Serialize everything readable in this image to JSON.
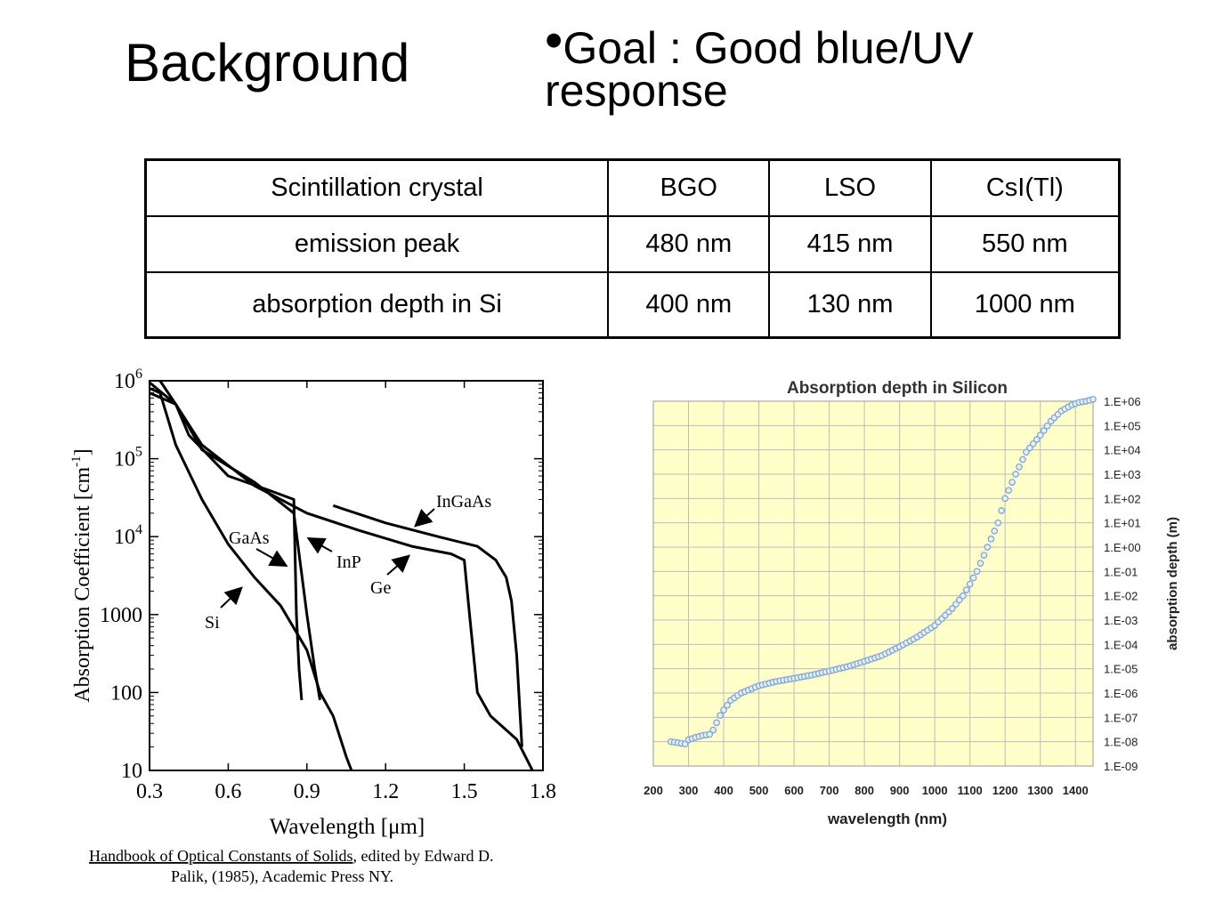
{
  "slide": {
    "title": "Background",
    "goal_line1": "Goal : Good blue/UV",
    "goal_line2": "response"
  },
  "table": {
    "headers": [
      "Scintillation crystal",
      "BGO",
      "LSO",
      "CsI(Tl)"
    ],
    "rows": [
      [
        "emission peak",
        "480 nm",
        "415 nm",
        "550 nm"
      ],
      [
        "absorption depth in Si",
        "400 nm",
        "130 nm",
        "1000 nm"
      ]
    ]
  },
  "chart_data": [
    {
      "type": "line",
      "title": "",
      "xlabel": "Wavelength [μm]",
      "ylabel": "Absorption Coefficient [cm-1]",
      "y_scale": "log",
      "xlim": [
        0.3,
        1.8
      ],
      "ylim": [
        10,
        1000000
      ],
      "x_tick_labels": [
        "0.3",
        "0.6",
        "0.9",
        "1.2",
        "1.5",
        "1.8"
      ],
      "y_tick_labels": [
        "10",
        "100",
        "1000",
        "10^4",
        "10^5",
        "10^6"
      ],
      "series": [
        {
          "name": "Si",
          "x": [
            0.3,
            0.34,
            0.4,
            0.5,
            0.6,
            0.7,
            0.8,
            0.9,
            0.95,
            1.0,
            1.05,
            1.07
          ],
          "y": [
            800000,
            700000,
            150000,
            30000,
            8000,
            3000,
            1300,
            350,
            100,
            50,
            15,
            10
          ]
        },
        {
          "name": "GaAs",
          "x": [
            0.3,
            0.4,
            0.45,
            0.6,
            0.75,
            0.85,
            0.86,
            0.87,
            0.88
          ],
          "y": [
            950000,
            500000,
            200000,
            60000,
            40000,
            30000,
            1000,
            200,
            80
          ]
        },
        {
          "name": "InP",
          "x": [
            0.34,
            0.4,
            0.5,
            0.7,
            0.85,
            0.9,
            0.93,
            0.95
          ],
          "y": [
            1000000,
            500000,
            130000,
            50000,
            20000,
            1000,
            200,
            80
          ]
        },
        {
          "name": "Ge",
          "x": [
            0.3,
            0.4,
            0.5,
            0.7,
            0.9,
            1.1,
            1.3,
            1.45,
            1.5,
            1.52,
            1.55,
            1.6,
            1.7,
            1.76
          ],
          "y": [
            700000,
            500000,
            150000,
            45000,
            20000,
            12000,
            7500,
            6000,
            5000,
            1000,
            100,
            50,
            25,
            10
          ]
        },
        {
          "name": "InGaAs",
          "x": [
            1.0,
            1.2,
            1.4,
            1.55,
            1.62,
            1.66,
            1.68,
            1.7,
            1.72
          ],
          "y": [
            25000,
            15000,
            10000,
            7500,
            5000,
            3000,
            1500,
            300,
            20
          ]
        }
      ]
    },
    {
      "type": "scatter",
      "title": "Absorption depth in Silicon",
      "xlabel": "wavelength (nm)",
      "ylabel": "absorption depth (m)",
      "y_scale": "log",
      "xlim": [
        200,
        1450
      ],
      "ylim": [
        1e-09,
        1000000.0
      ],
      "grid": true,
      "x_tick_labels": [
        "200",
        "300",
        "400",
        "500",
        "600",
        "700",
        "800",
        "900",
        "1000",
        "1100",
        "1200",
        "1300",
        "1400"
      ],
      "y_tick_labels": [
        "1.E-09",
        "1.E-08",
        "1.E-07",
        "1.E-06",
        "1.E-05",
        "1.E-04",
        "1.E-03",
        "1.E-02",
        "1.E-01",
        "1.E+00",
        "1.E+01",
        "1.E+02",
        "1.E+03",
        "1.E+04",
        "1.E+05",
        "1.E+06"
      ],
      "x": [
        250,
        270,
        290,
        300,
        320,
        340,
        360,
        370,
        380,
        390,
        400,
        420,
        450,
        500,
        550,
        600,
        650,
        700,
        750,
        800,
        850,
        900,
        950,
        1000,
        1050,
        1080,
        1100,
        1120,
        1150,
        1180,
        1200,
        1230,
        1260,
        1300,
        1330,
        1360,
        1390,
        1410,
        1430,
        1440,
        1450
      ],
      "y": [
        1e-08,
        9e-09,
        8e-09,
        1.2e-08,
        1.5e-08,
        1.8e-08,
        2e-08,
        3e-08,
        6e-08,
        1.2e-07,
        2e-07,
        5e-07,
        1e-06,
        2e-06,
        3e-06,
        4e-06,
        5.5e-06,
        8e-06,
        1.2e-05,
        2e-05,
        3.5e-05,
        8e-05,
        0.0002,
        0.0006,
        0.003,
        0.01,
        0.03,
        0.1,
        1,
        10,
        100,
        1000,
        8000,
        40000,
        150000,
        400000,
        700000,
        900000,
        1000000,
        1100000,
        1200000
      ]
    }
  ],
  "left_chart": {
    "labels": {
      "si": "Si",
      "gaas": "GaAs",
      "inp": "InP",
      "ge": "Ge",
      "ingaas": "InGaAs"
    },
    "reference_title": "Handbook of Optical Constants of Solids",
    "reference_rest1": ", edited by Edward D.",
    "reference_line2": "Palik, (1985), Academic Press NY."
  }
}
